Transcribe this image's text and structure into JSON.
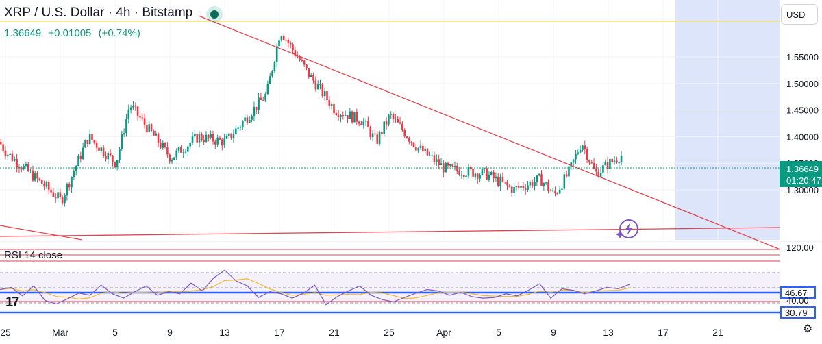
{
  "header": {
    "title": "XRP / U.S. Dollar · 4h · Bitstamp",
    "last_price": "1.36649",
    "change": "+0.01005",
    "change_pct": "(+0.74%)"
  },
  "currency_button": "USD",
  "colors": {
    "up": "#089981",
    "down": "#f23645",
    "body_up": "#089981",
    "trendline": "#e0434f",
    "horizontal": "#f5e06a",
    "highlight": "#dde5fb",
    "rsi": "#7e57c2",
    "rsi_ma": "#f2b92c",
    "marker": "#2962ff",
    "price_tag": "#089981"
  },
  "icons": {
    "settings": "gear-icon",
    "ai": "lightning-icon",
    "logo": "tradingview-logo",
    "live": "live-dot-icon"
  },
  "chart_data": [
    {
      "type": "candlestick",
      "title": "XRP / U.S. Dollar · 4h · Bitstamp",
      "x_ticks": [
        "25",
        "Mar",
        "5",
        "9",
        "13",
        "17",
        "21",
        "25",
        "Apr",
        "5",
        "9",
        "13",
        "17",
        "21"
      ],
      "y_ticks": [
        "1.30000",
        "1.35000",
        "1.40000",
        "1.45000",
        "1.50000",
        "1.55000"
      ],
      "ylim": [
        1.25,
        1.62
      ],
      "last_price_label": "1.36649",
      "countdown": "01:20:47",
      "horizontal_line": 1.6,
      "approx_path": [
        [
          "Feb 24",
          1.39
        ],
        [
          "Feb 26",
          1.45
        ],
        [
          "Feb 28",
          1.37
        ],
        [
          "Mar 1",
          1.28
        ],
        [
          "Mar 3",
          1.4
        ],
        [
          "Mar 5",
          1.35
        ],
        [
          "Mar 6",
          1.46
        ],
        [
          "Mar 9",
          1.36
        ],
        [
          "Mar 11",
          1.4
        ],
        [
          "Mar 13",
          1.39
        ],
        [
          "Mar 16",
          1.48
        ],
        [
          "Mar 17",
          1.6
        ],
        [
          "Mar 19",
          1.52
        ],
        [
          "Mar 21",
          1.45
        ],
        [
          "Mar 23",
          1.43
        ],
        [
          "Mar 24",
          1.39
        ],
        [
          "Mar 25",
          1.44
        ],
        [
          "Mar 27",
          1.38
        ],
        [
          "Mar 29",
          1.34
        ],
        [
          "Apr 1",
          1.33
        ],
        [
          "Apr 3",
          1.3
        ],
        [
          "Apr 5",
          1.32
        ],
        [
          "Apr 6",
          1.29
        ],
        [
          "Apr 7",
          1.33
        ],
        [
          "Apr 8",
          1.39
        ],
        [
          "Apr 9",
          1.33
        ],
        [
          "Apr 10",
          1.35
        ],
        [
          "Apr 11",
          1.3665
        ]
      ]
    },
    {
      "type": "line",
      "title": "RSI 14 close",
      "y_ticks": [
        "120.00",
        "40.00"
      ],
      "markers": [
        "46.67",
        "30.79"
      ],
      "values": [
        55,
        58,
        46,
        60,
        40,
        35,
        42,
        50,
        47,
        61,
        49,
        43,
        52,
        60,
        47,
        52,
        49,
        64,
        53,
        71,
        82,
        67,
        60,
        44,
        52,
        49,
        43,
        50,
        61,
        34,
        45,
        53,
        60,
        47,
        41,
        38,
        44,
        50,
        55,
        53,
        47,
        51,
        45,
        43,
        44,
        49,
        46,
        54,
        63,
        43,
        56,
        54,
        49,
        53,
        58,
        56,
        62
      ]
    }
  ]
}
